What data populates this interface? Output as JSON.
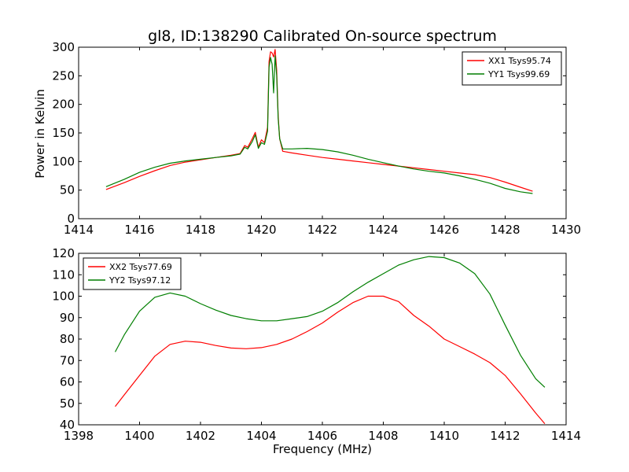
{
  "chart_data": [
    {
      "type": "line",
      "title": "gl8, ID:138290 Calibrated On-source spectrum",
      "xlabel": "",
      "ylabel": "Power in Kelvin",
      "xlim": [
        1414,
        1430
      ],
      "ylim": [
        0,
        300
      ],
      "xticks": [
        "1414",
        "1416",
        "1418",
        "1420",
        "1422",
        "1424",
        "1426",
        "1428",
        "1430"
      ],
      "yticks": [
        "0",
        "50",
        "100",
        "150",
        "200",
        "250",
        "300"
      ],
      "grid": false,
      "legend_position": "top-right",
      "series": [
        {
          "name": "XX1 Tsys95.74",
          "color": "#ff0000",
          "x": [
            1414.9,
            1415.5,
            1416,
            1416.5,
            1417,
            1417.5,
            1418,
            1418.5,
            1419,
            1419.3,
            1419.45,
            1419.55,
            1419.7,
            1419.8,
            1419.9,
            1420.0,
            1420.1,
            1420.2,
            1420.25,
            1420.3,
            1420.35,
            1420.4,
            1420.45,
            1420.5,
            1420.55,
            1420.6,
            1420.7,
            1421,
            1421.5,
            1422,
            1422.5,
            1423,
            1423.5,
            1424,
            1424.5,
            1425,
            1425.5,
            1426,
            1426.5,
            1427,
            1427.5,
            1428,
            1428.5,
            1428.9
          ],
          "y": [
            51,
            63,
            74,
            84,
            93,
            99,
            103,
            107,
            111,
            114,
            128,
            125,
            140,
            151,
            125,
            138,
            133,
            160,
            275,
            292,
            290,
            283,
            296,
            260,
            180,
            140,
            118,
            115,
            111,
            107,
            104,
            101,
            98,
            95,
            92,
            89,
            86,
            83,
            80,
            77,
            72,
            64,
            55,
            48
          ]
        },
        {
          "name": "YY1 Tsys99.69",
          "color": "#007f00",
          "x": [
            1414.9,
            1415.5,
            1416,
            1416.5,
            1417,
            1417.5,
            1418,
            1418.5,
            1419,
            1419.3,
            1419.45,
            1419.55,
            1419.7,
            1419.8,
            1419.9,
            1420.0,
            1420.1,
            1420.2,
            1420.25,
            1420.3,
            1420.35,
            1420.4,
            1420.45,
            1420.5,
            1420.55,
            1420.6,
            1420.7,
            1421,
            1421.5,
            1422,
            1422.5,
            1423,
            1423.5,
            1424,
            1424.5,
            1425,
            1425.5,
            1426,
            1426.5,
            1427,
            1427.5,
            1428,
            1428.5,
            1428.9
          ],
          "y": [
            56,
            69,
            81,
            90,
            97,
            101,
            104,
            107,
            110,
            113,
            125,
            122,
            135,
            147,
            123,
            133,
            130,
            153,
            265,
            282,
            270,
            220,
            285,
            250,
            175,
            140,
            122,
            122,
            123,
            121,
            117,
            111,
            104,
            98,
            92,
            87,
            83,
            80,
            75,
            69,
            62,
            53,
            47,
            44
          ]
        }
      ]
    },
    {
      "type": "line",
      "title": "",
      "xlabel": "Frequency (MHz)",
      "ylabel": "",
      "xlim": [
        1398,
        1414
      ],
      "ylim": [
        40,
        120
      ],
      "xticks": [
        "1398",
        "1400",
        "1402",
        "1404",
        "1406",
        "1408",
        "1410",
        "1412",
        "1414"
      ],
      "yticks": [
        "40",
        "50",
        "60",
        "70",
        "80",
        "90",
        "100",
        "110",
        "120"
      ],
      "grid": false,
      "legend_position": "top-left",
      "series": [
        {
          "name": "XX2 Tsys77.69",
          "color": "#ff0000",
          "x": [
            1399.2,
            1399.5,
            1400,
            1400.5,
            1401,
            1401.5,
            1402,
            1402.5,
            1403,
            1403.5,
            1404,
            1404.5,
            1405,
            1405.5,
            1406,
            1406.5,
            1407,
            1407.5,
            1408,
            1408.5,
            1409,
            1409.5,
            1410,
            1410.5,
            1411,
            1411.5,
            1412,
            1412.5,
            1413,
            1413.3
          ],
          "y": [
            48.5,
            54,
            63,
            72,
            77.5,
            79,
            78.5,
            77,
            75.8,
            75.5,
            76,
            77.5,
            80,
            83.5,
            87.5,
            92.5,
            97,
            100,
            100,
            97.5,
            91,
            86,
            80,
            76.5,
            73,
            69,
            63,
            54.5,
            45.5,
            40.5
          ]
        },
        {
          "name": "YY2 Tsys97.12",
          "color": "#007f00",
          "x": [
            1399.2,
            1399.5,
            1400,
            1400.5,
            1401,
            1401.5,
            1402,
            1402.5,
            1403,
            1403.5,
            1404,
            1404.5,
            1405,
            1405.5,
            1406,
            1406.5,
            1407,
            1407.5,
            1408,
            1408.5,
            1409,
            1409.5,
            1410,
            1410.5,
            1411,
            1411.5,
            1412,
            1412.5,
            1413,
            1413.3
          ],
          "y": [
            74,
            82,
            93,
            99.5,
            101.5,
            100,
            96.5,
            93.5,
            91,
            89.5,
            88.5,
            88.5,
            89.5,
            90.5,
            93,
            97,
            102,
            106.5,
            110.5,
            114.5,
            117,
            118.5,
            118,
            115.5,
            110.5,
            101,
            86.5,
            72.5,
            61.5,
            57.5
          ]
        }
      ]
    }
  ]
}
